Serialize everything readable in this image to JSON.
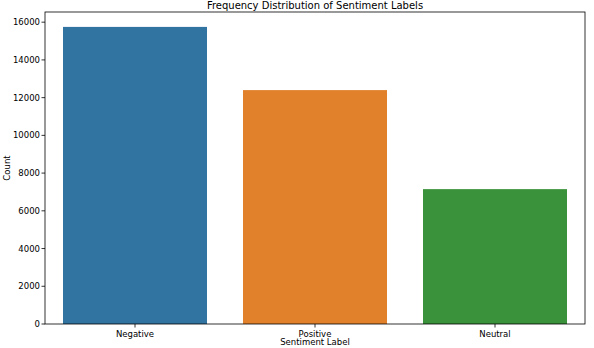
{
  "chart_data": {
    "type": "bar",
    "title": "Frequency Distribution of Sentiment Labels",
    "x_label": "Sentiment Label",
    "y_label": "Count",
    "categories": [
      "Negative",
      "Positive",
      "Neutral"
    ],
    "values": [
      15750,
      12400,
      7150
    ],
    "colors": [
      "#3274a1",
      "#e1812c",
      "#3a923a"
    ],
    "ylim": [
      0,
      16540
    ],
    "yticks": [
      0,
      2000,
      4000,
      6000,
      8000,
      10000,
      12000,
      14000,
      16000
    ],
    "grid": false
  }
}
